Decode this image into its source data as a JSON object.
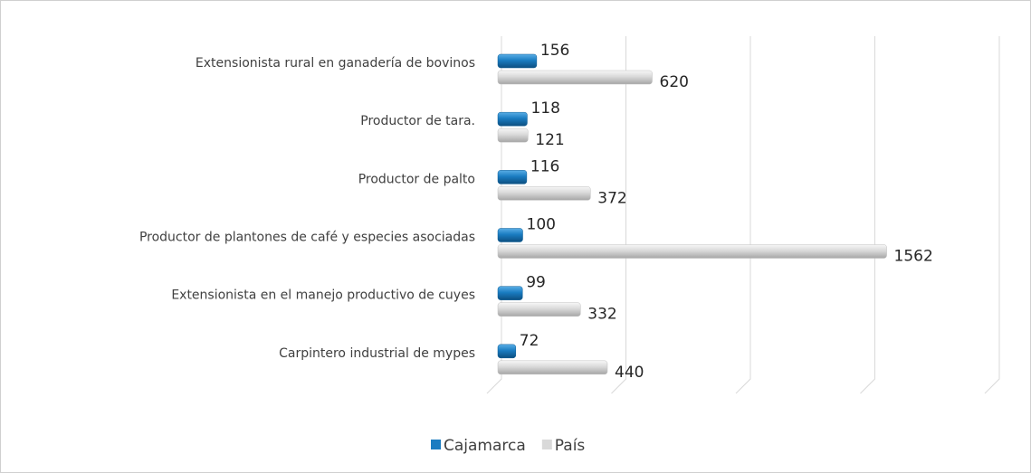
{
  "chart_data": {
    "type": "bar",
    "orientation": "horizontal",
    "categories": [
      "Extensionista rural en ganadería de bovinos",
      "Productor de tara.",
      "Productor de palto",
      "Productor de plantones de café y especies asociadas",
      "Extensionista en el manejo productivo de cuyes",
      "Carpintero industrial de mypes"
    ],
    "series": [
      {
        "name": "Cajamarca",
        "color": "#1a7cc1",
        "values": [
          156,
          118,
          116,
          100,
          99,
          72
        ]
      },
      {
        "name": "País",
        "color": "#d9d9d9",
        "values": [
          620,
          121,
          372,
          1562,
          332,
          440
        ]
      }
    ],
    "xlim": [
      0,
      2000
    ],
    "xticks": [
      0,
      500,
      1000,
      1500,
      2000
    ],
    "grid": true,
    "legend": "bottom"
  }
}
